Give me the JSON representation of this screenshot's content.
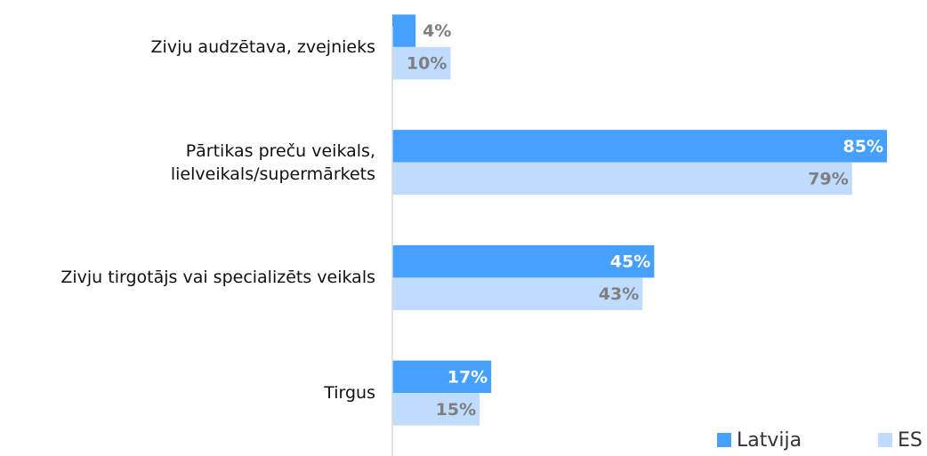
{
  "chart_data": {
    "type": "bar",
    "orientation": "horizontal",
    "categories": [
      "Zivju audzētava, zvejnieks",
      "Pārtikas preču veikals,\nlielveikals/supermārkets",
      "Zivju tirgotājs vai specializēts veikals",
      "Tirgus"
    ],
    "series": [
      {
        "name": "Latvija",
        "color": "#46a0ff",
        "values": [
          4,
          85,
          45,
          17
        ],
        "value_labels": [
          "4%",
          "85%",
          "45%",
          "17%"
        ]
      },
      {
        "name": "ES",
        "color": "#bfdcff",
        "values": [
          10,
          79,
          43,
          15
        ],
        "value_labels": [
          "10%",
          "79%",
          "43%",
          "15%"
        ]
      }
    ],
    "xlim": [
      0,
      85
    ],
    "legend": "bottom-right"
  }
}
